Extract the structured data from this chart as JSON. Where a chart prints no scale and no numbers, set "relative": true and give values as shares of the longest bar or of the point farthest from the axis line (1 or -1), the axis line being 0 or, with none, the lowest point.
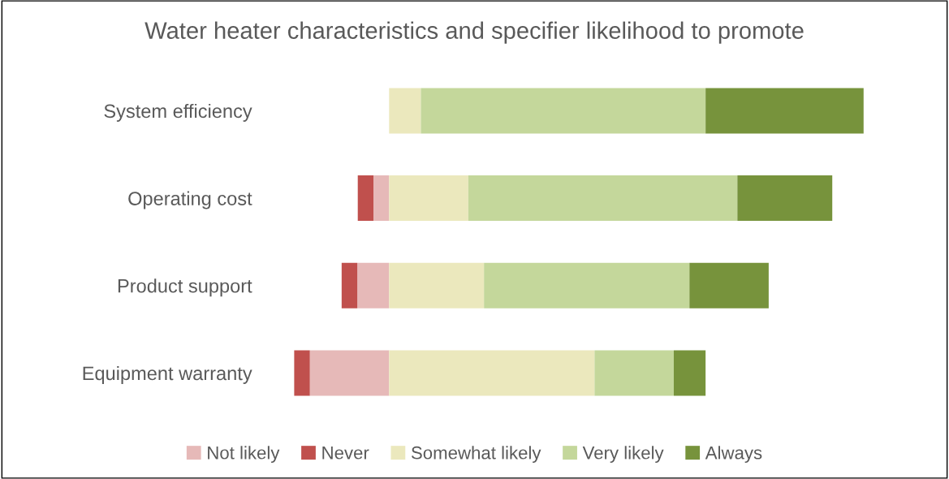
{
  "chart_data": {
    "type": "bar",
    "orientation": "horizontal",
    "stacked": true,
    "relative": true,
    "title": "Water heater characteristics and specifier likelihood to promote",
    "categories": [
      "System efficiency",
      "Operating cost",
      "Product support",
      "Equipment warranty"
    ],
    "series": [
      {
        "name": "Not likely",
        "color": "#e6b9b8",
        "values": [
          0,
          -0.033,
          -0.067,
          -0.167
        ]
      },
      {
        "name": "Never",
        "color": "#c0504d",
        "values": [
          0,
          -0.033,
          -0.033,
          -0.033
        ]
      },
      {
        "name": "Somewhat likely",
        "color": "#ebe8bd",
        "values": [
          0.067,
          0.167,
          0.2,
          0.433
        ]
      },
      {
        "name": "Very likely",
        "color": "#c4d79b",
        "values": [
          0.6,
          0.567,
          0.433,
          0.167
        ]
      },
      {
        "name": "Always",
        "color": "#77933c",
        "values": [
          0.333,
          0.2,
          0.167,
          0.067
        ]
      }
    ],
    "legend": "bottom",
    "grid": false
  }
}
